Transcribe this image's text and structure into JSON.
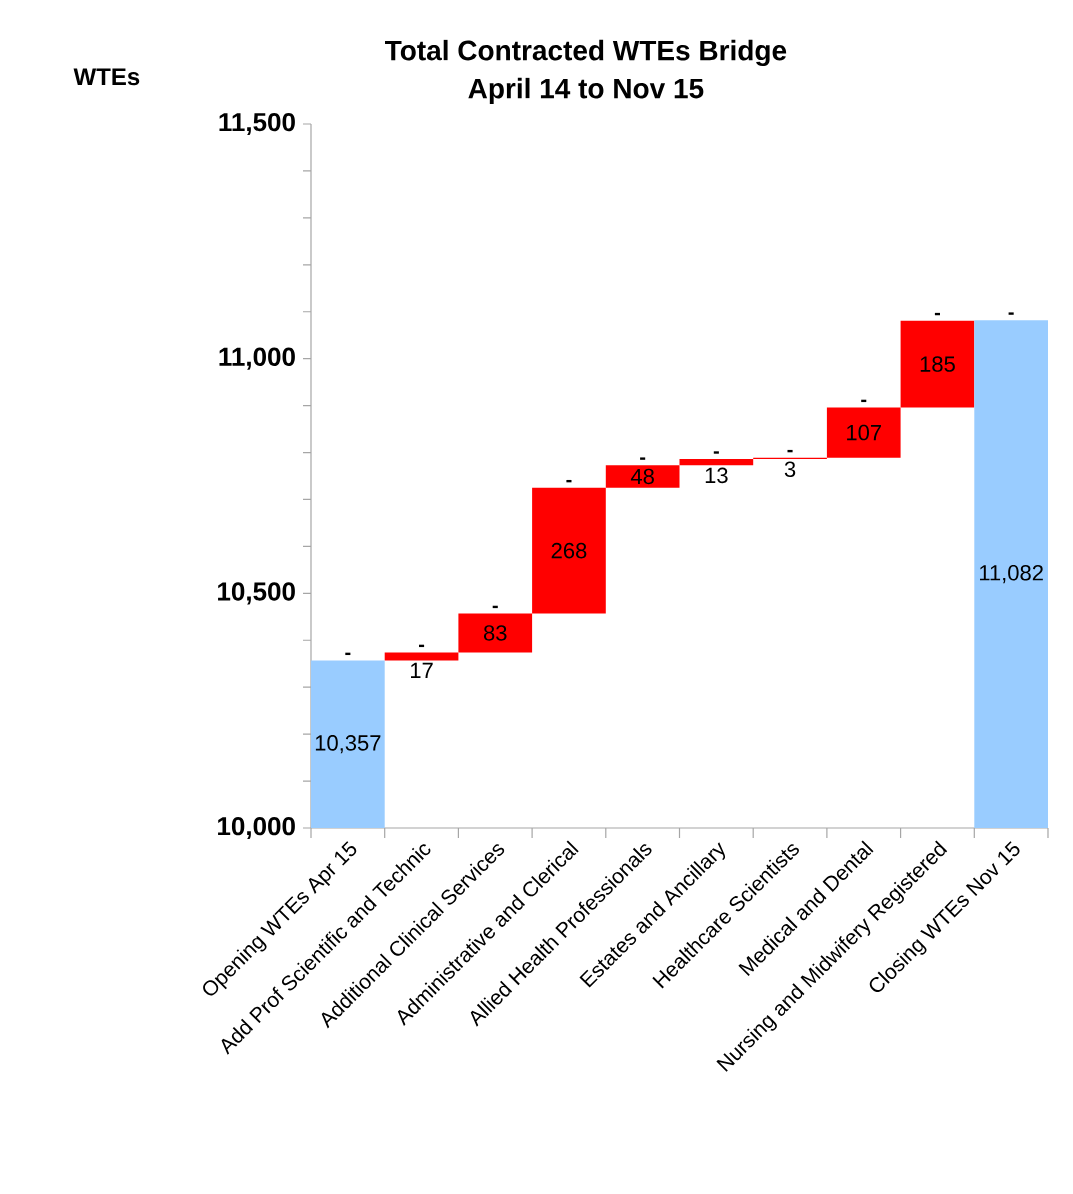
{
  "chart_data": {
    "type": "bar",
    "title": "Total Contracted WTEs Bridge",
    "subtitle": "April 14 to Nov 15",
    "ylabel": "WTEs",
    "categories": [
      "Opening WTEs Apr 15",
      "Add Prof Scientific and Technic",
      "Additional Clinical Services",
      "Administrative and Clerical",
      "Allied Health Professionals",
      "Estates and Ancillary",
      "Healthcare Scientists",
      "Medical and Dental",
      "Nursing and Midwifery Registered",
      "Closing WTEs Nov 15"
    ],
    "values": [
      10357,
      17,
      83,
      268,
      48,
      13,
      3,
      107,
      185,
      11082
    ],
    "base": [
      null,
      10357,
      10374,
      10457,
      10725,
      10773,
      10786,
      10789,
      10896,
      null
    ],
    "colors": [
      "#99ccff",
      "#ff0000",
      "#ff0000",
      "#ff0000",
      "#ff0000",
      "#ff0000",
      "#ff0000",
      "#ff0000",
      "#ff0000",
      "#99ccff"
    ],
    "value_labels": [
      "10,357",
      "17",
      "83",
      "268",
      "48",
      "13",
      "3",
      "107",
      "185",
      "11,082"
    ],
    "ylim": [
      10000,
      11500
    ],
    "yticks": [
      {
        "value": 10000,
        "label": "10,000"
      },
      {
        "value": 10100,
        "label": null
      },
      {
        "value": 10200,
        "label": null
      },
      {
        "value": 10300,
        "label": null
      },
      {
        "value": 10400,
        "label": null
      },
      {
        "value": 10500,
        "label": "10,500"
      },
      {
        "value": 10600,
        "label": null
      },
      {
        "value": 10700,
        "label": null
      },
      {
        "value": 10800,
        "label": null
      },
      {
        "value": 10900,
        "label": null
      },
      {
        "value": 11000,
        "label": "11,000"
      },
      {
        "value": 11100,
        "label": null
      },
      {
        "value": 11200,
        "label": null
      },
      {
        "value": 11300,
        "label": null
      },
      {
        "value": 11400,
        "label": null
      },
      {
        "value": 11500,
        "label": "11,500"
      }
    ],
    "annotations": [
      {
        "text": "-",
        "x": "Opening WTEs Apr 15",
        "y": 10357
      },
      {
        "text": "-",
        "x": "Add Prof Scientific and Technic",
        "y": 10374
      },
      {
        "text": "-",
        "x": "Additional Clinical Services",
        "y": 10457
      },
      {
        "text": "-",
        "x": "Administrative and Clerical",
        "y": 10725
      },
      {
        "text": "-",
        "x": "Allied Health Professionals",
        "y": 10773
      },
      {
        "text": "-",
        "x": "Estates and Ancillary",
        "y": 10786
      },
      {
        "text": "-",
        "x": "Healthcare Scientists",
        "y": 10789
      },
      {
        "text": "-",
        "x": "Medical and Dental",
        "y": 10896
      },
      {
        "text": "-",
        "x": "Nursing and Midwifery Registered",
        "y": 11081
      },
      {
        "text": "-",
        "x": "Closing WTEs Nov 15",
        "y": 11082
      }
    ],
    "grid": false
  }
}
